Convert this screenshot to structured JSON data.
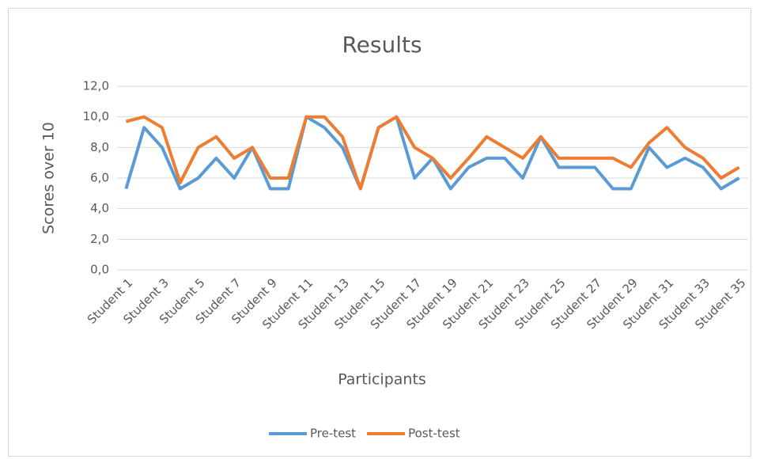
{
  "chart_data": {
    "type": "line",
    "title": "Results",
    "x_label": "Participants",
    "y_label": "Scores over 10",
    "categories": [
      "Student 1",
      null,
      "Student 3",
      null,
      "Student 5",
      null,
      "Student 7",
      null,
      "Student 9",
      null,
      "Student 11",
      null,
      "Student 13",
      null,
      "Student 15",
      null,
      "Student 17",
      null,
      "Student 19",
      null,
      "Student 21",
      null,
      "Student 23",
      null,
      "Student 25",
      null,
      "Student 27",
      null,
      "Student 29",
      null,
      "Student 31",
      null,
      "Student 33",
      null,
      "Student 35"
    ],
    "series": [
      {
        "name": "Pre-test",
        "color": "#5b9bd5",
        "values": [
          5.3,
          9.3,
          8.0,
          5.3,
          6.0,
          7.3,
          6.0,
          8.0,
          5.3,
          5.3,
          10.0,
          9.3,
          8.0,
          5.3,
          9.3,
          10.0,
          6.0,
          7.3,
          5.3,
          6.7,
          7.3,
          7.3,
          6.0,
          8.7,
          6.7,
          6.7,
          6.7,
          5.3,
          5.3,
          8.0,
          6.7,
          7.3,
          6.7,
          5.3,
          6.0
        ]
      },
      {
        "name": "Post-test",
        "color": "#ed7d31",
        "values": [
          9.7,
          10.0,
          9.3,
          5.7,
          8.0,
          8.7,
          7.3,
          8.0,
          6.0,
          6.0,
          10.0,
          10.0,
          8.7,
          5.3,
          9.3,
          10.0,
          8.0,
          7.3,
          6.0,
          7.3,
          8.7,
          8.0,
          7.3,
          8.7,
          7.3,
          7.3,
          7.3,
          7.3,
          6.7,
          8.3,
          9.3,
          8.0,
          7.3,
          6.0,
          6.7
        ]
      }
    ],
    "ylim": [
      0,
      12
    ],
    "yticks": [
      {
        "value": 0,
        "label": "0,0"
      },
      {
        "value": 2,
        "label": "2,0"
      },
      {
        "value": 4,
        "label": "4,0"
      },
      {
        "value": 6,
        "label": "6,0"
      },
      {
        "value": 8,
        "label": "8,0"
      },
      {
        "value": 10,
        "label": "10,0"
      },
      {
        "value": 12,
        "label": "12,0"
      }
    ],
    "grid": true,
    "legend": "bottom"
  }
}
